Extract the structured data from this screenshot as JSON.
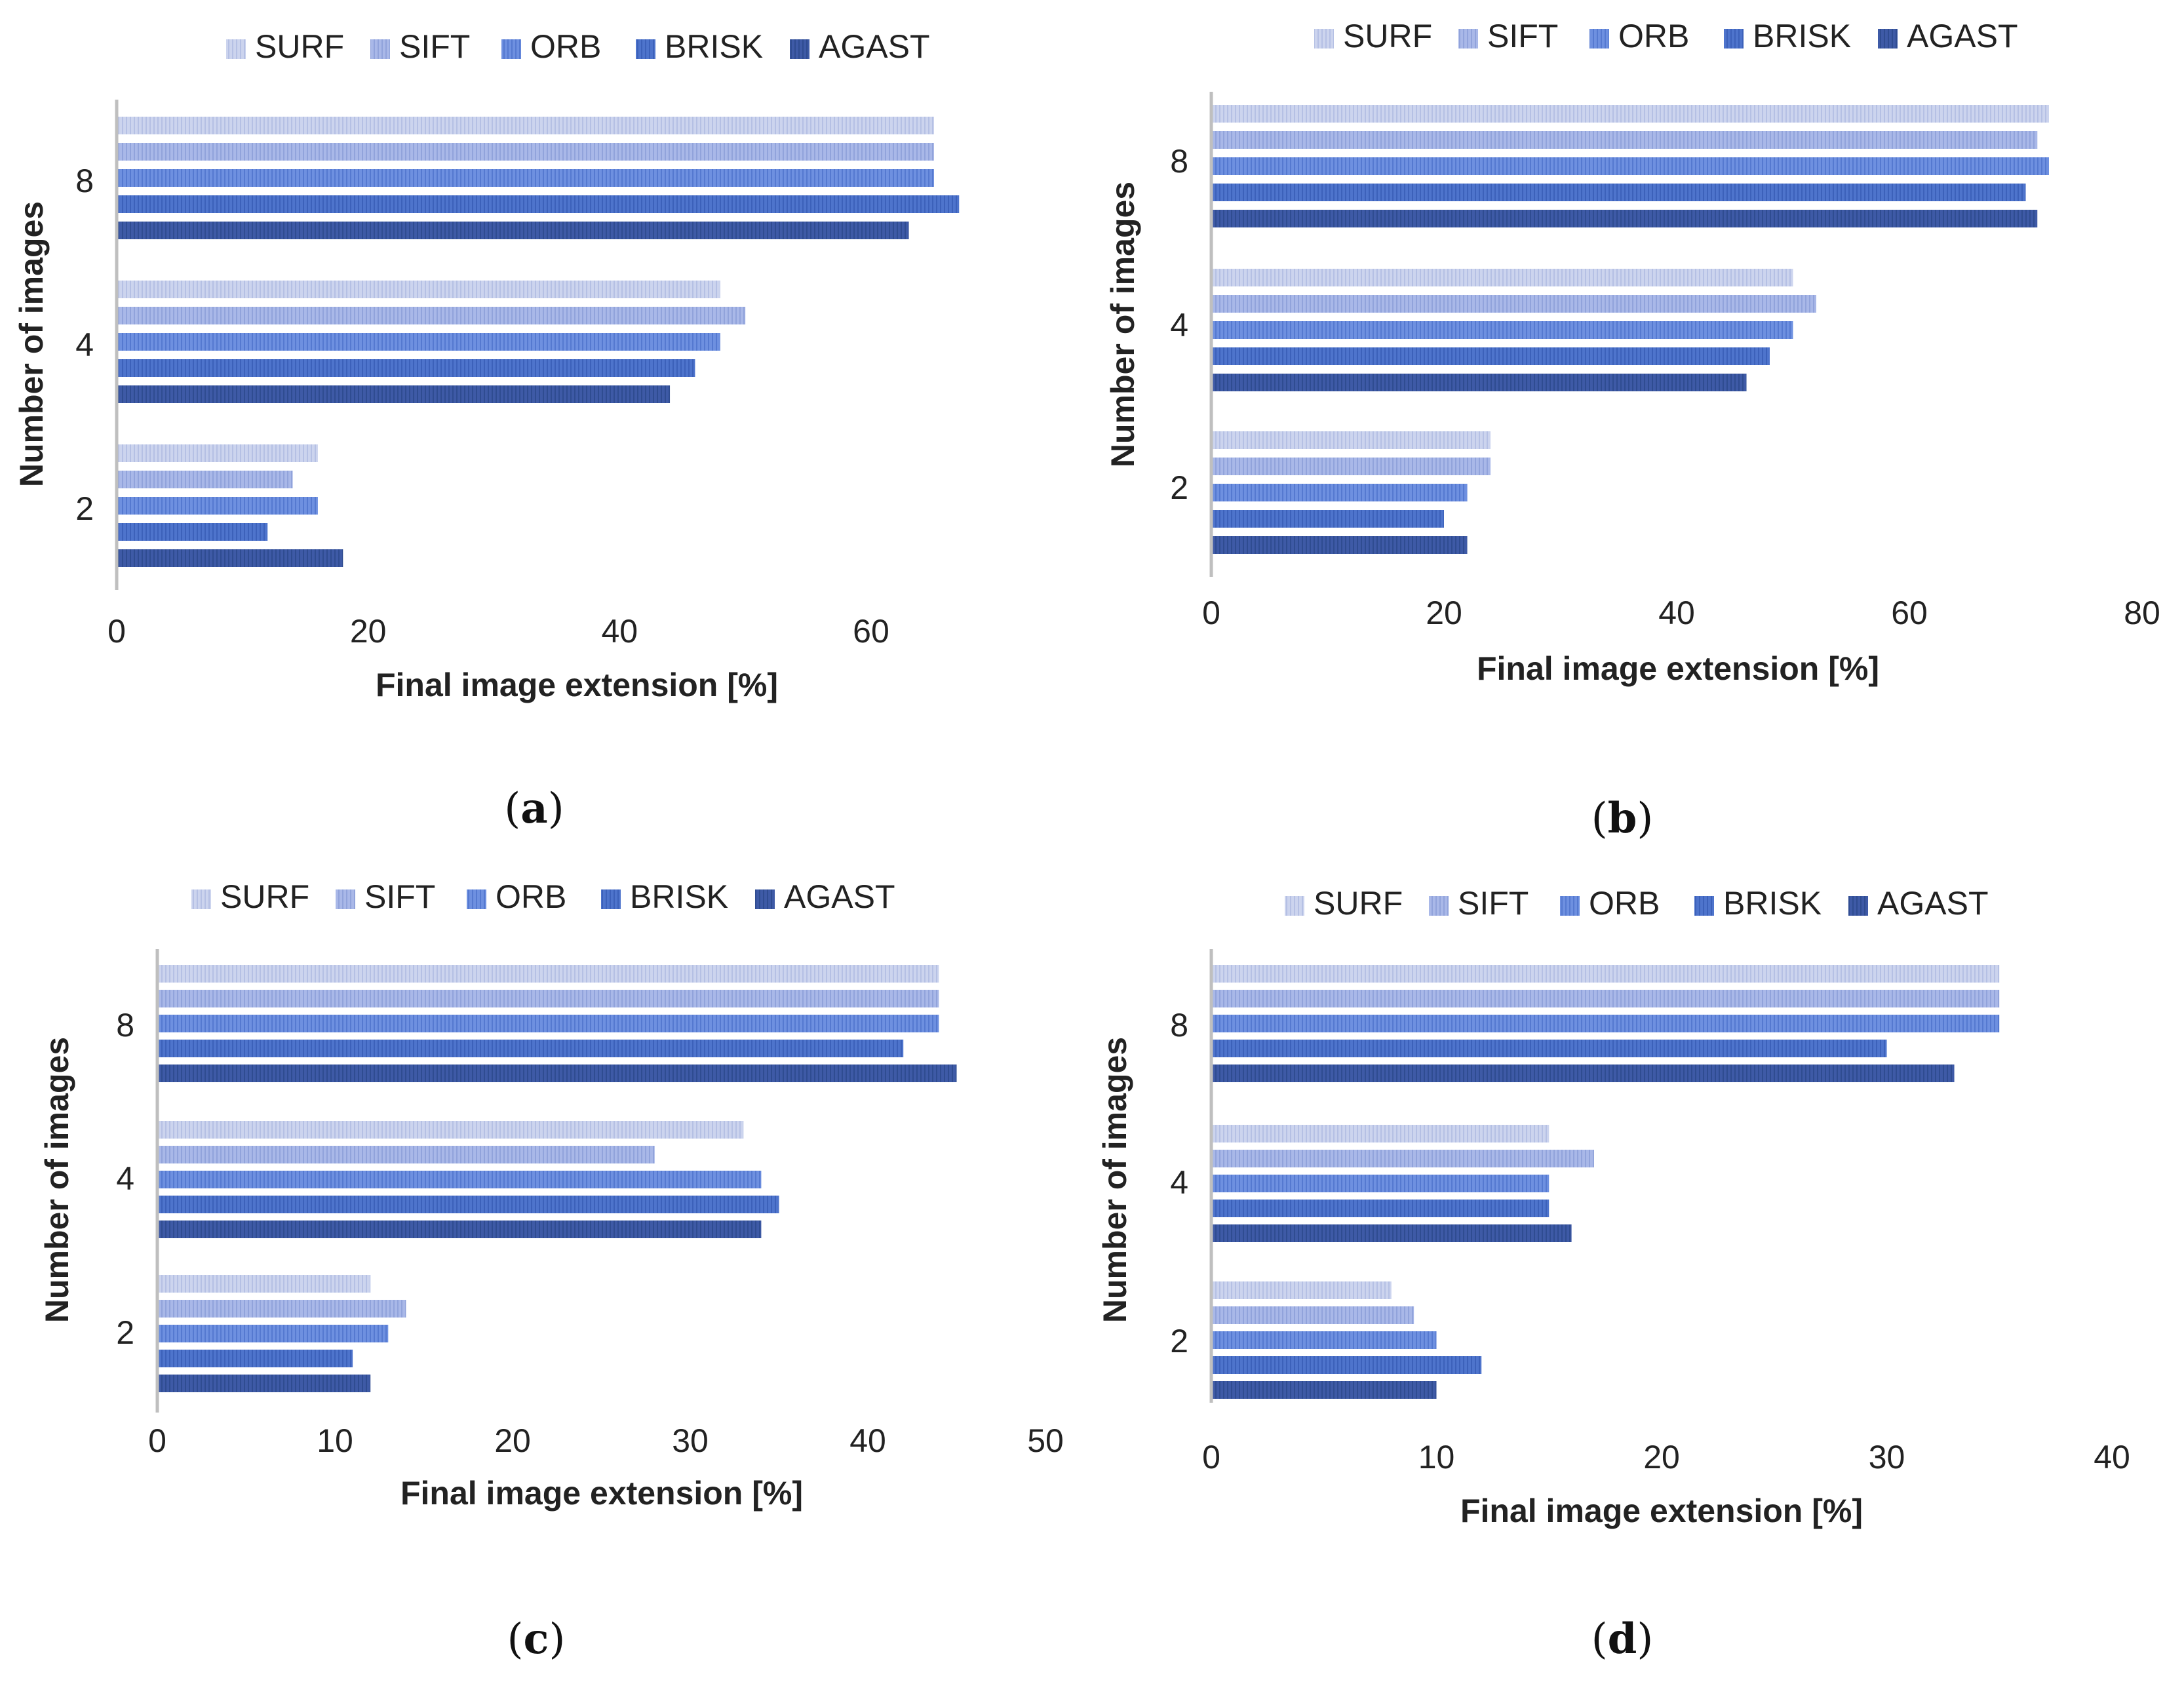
{
  "legend": [
    "SURF",
    "SIFT",
    "ORB",
    "BRISK",
    "AGAST"
  ],
  "series_colors": [
    "#ccd4ee",
    "#a9b8e8",
    "#6e90e0",
    "#4e74cc",
    "#3e5aa6"
  ],
  "chart_data": [
    {
      "type": "bar",
      "orientation": "horizontal",
      "caption": "(a)",
      "categories": [
        "8",
        "4",
        "2"
      ],
      "series": [
        {
          "name": "SURF",
          "values": [
            65,
            48,
            16
          ]
        },
        {
          "name": "SIFT",
          "values": [
            65,
            50,
            14
          ]
        },
        {
          "name": "ORB",
          "values": [
            65,
            48,
            16
          ]
        },
        {
          "name": "BRISK",
          "values": [
            67,
            46,
            12
          ]
        },
        {
          "name": "AGAST",
          "values": [
            63,
            44,
            18
          ]
        }
      ],
      "xlabel": "Final image extension [%]",
      "ylabel": "Number of images",
      "xlim": [
        0,
        71
      ],
      "xticks": [
        0,
        20,
        40,
        60
      ]
    },
    {
      "type": "bar",
      "orientation": "horizontal",
      "caption": "(b)",
      "categories": [
        "8",
        "4",
        "2"
      ],
      "series": [
        {
          "name": "SURF",
          "values": [
            72,
            50,
            24
          ]
        },
        {
          "name": "SIFT",
          "values": [
            71,
            52,
            24
          ]
        },
        {
          "name": "ORB",
          "values": [
            72,
            50,
            22
          ]
        },
        {
          "name": "BRISK",
          "values": [
            70,
            48,
            20
          ]
        },
        {
          "name": "AGAST",
          "values": [
            71,
            46,
            22
          ]
        }
      ],
      "xlabel": "Final image extension [%]",
      "ylabel": "Number of images",
      "xlim": [
        0,
        80
      ],
      "xticks": [
        0,
        20,
        40,
        60,
        80
      ]
    },
    {
      "type": "bar",
      "orientation": "horizontal",
      "caption": "(c)",
      "categories": [
        "8",
        "4",
        "2"
      ],
      "series": [
        {
          "name": "SURF",
          "values": [
            44,
            33,
            12
          ]
        },
        {
          "name": "SIFT",
          "values": [
            44,
            28,
            14
          ]
        },
        {
          "name": "ORB",
          "values": [
            44,
            34,
            13
          ]
        },
        {
          "name": "BRISK",
          "values": [
            42,
            35,
            11
          ]
        },
        {
          "name": "AGAST",
          "values": [
            45,
            34,
            12
          ]
        }
      ],
      "xlabel": "Final image extension [%]",
      "ylabel": "Number of images",
      "xlim": [
        0,
        50
      ],
      "xticks": [
        0,
        10,
        20,
        30,
        40,
        50
      ]
    },
    {
      "type": "bar",
      "orientation": "horizontal",
      "caption": "(d)",
      "categories": [
        "8",
        "4",
        "2"
      ],
      "series": [
        {
          "name": "SURF",
          "values": [
            35,
            15,
            8
          ]
        },
        {
          "name": "SIFT",
          "values": [
            35,
            17,
            9
          ]
        },
        {
          "name": "ORB",
          "values": [
            35,
            15,
            10
          ]
        },
        {
          "name": "BRISK",
          "values": [
            30,
            15,
            12
          ]
        },
        {
          "name": "AGAST",
          "values": [
            33,
            16,
            10
          ]
        }
      ],
      "xlabel": "Final image extension [%]",
      "ylabel": "Number of images",
      "xlim": [
        0,
        40
      ],
      "xticks": [
        0,
        10,
        20,
        30,
        40
      ]
    }
  ]
}
